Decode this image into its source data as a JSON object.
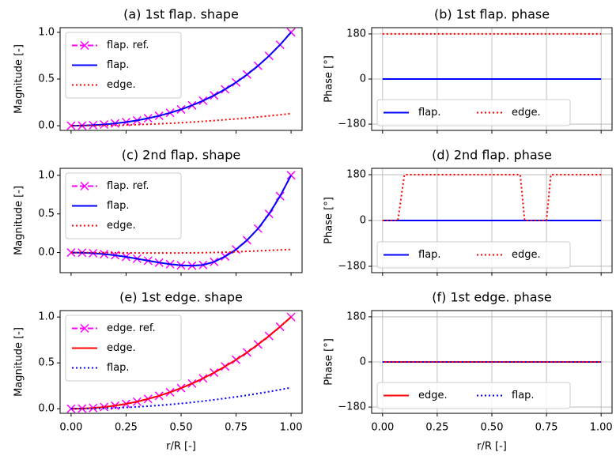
{
  "chart_data": [
    {
      "type": "line",
      "title": "(a) 1st flap. shape",
      "ylabel": "Magnitude [-]",
      "x": [
        0,
        0.05,
        0.1,
        0.15,
        0.2,
        0.25,
        0.3,
        0.35,
        0.4,
        0.45,
        0.5,
        0.55,
        0.6,
        0.65,
        0.7,
        0.75,
        0.8,
        0.85,
        0.9,
        0.95,
        1.0
      ],
      "series": [
        {
          "name": "flap. ref.",
          "color": "#ff00ff",
          "style": "dashed",
          "marker": "x",
          "values": [
            0,
            0.0015,
            0.006,
            0.0137,
            0.0246,
            0.039,
            0.057,
            0.08,
            0.106,
            0.138,
            0.175,
            0.218,
            0.268,
            0.325,
            0.39,
            0.464,
            0.548,
            0.642,
            0.748,
            0.867,
            1.0
          ]
        },
        {
          "name": "flap.",
          "color": "#0000ff",
          "style": "solid",
          "values": [
            0,
            0.0015,
            0.006,
            0.0137,
            0.0246,
            0.039,
            0.057,
            0.08,
            0.106,
            0.138,
            0.175,
            0.218,
            0.268,
            0.325,
            0.39,
            0.464,
            0.548,
            0.642,
            0.748,
            0.867,
            1.0
          ]
        },
        {
          "name": "edge.",
          "color": "#ff0000",
          "style": "dotted",
          "values": [
            0,
            0.0003,
            0.0013,
            0.0029,
            0.0052,
            0.0081,
            0.0117,
            0.0159,
            0.0208,
            0.0263,
            0.0325,
            0.0393,
            0.0468,
            0.0549,
            0.0637,
            0.0731,
            0.0832,
            0.0939,
            0.1053,
            0.1173,
            0.13
          ]
        }
      ],
      "xlim": [
        -0.05,
        1.05
      ],
      "ylim": [
        -0.05,
        1.05
      ],
      "xticks": [
        0,
        0.25,
        0.5,
        0.75,
        1.0
      ],
      "xtick_labels_shown": false,
      "yticks": [
        {
          "value": 0,
          "label": "0.0"
        },
        0.5,
        {
          "value": 1,
          "label": "1.0"
        }
      ],
      "grid": false,
      "legend": "upper left",
      "legend_ncol": 1
    },
    {
      "type": "line",
      "title": "(b) 1st flap. phase",
      "ylabel": "Phase [°]",
      "x": [
        0,
        1.0
      ],
      "series": [
        {
          "name": "flap.",
          "color": "#0000ff",
          "style": "solid",
          "values": [
            0,
            0
          ]
        },
        {
          "name": "edge.",
          "color": "#ff0000",
          "style": "dotted",
          "values": [
            180,
            180
          ]
        }
      ],
      "xlim": [
        -0.05,
        1.05
      ],
      "ylim": [
        -205,
        205
      ],
      "xticks": [
        0,
        0.25,
        0.5,
        0.75,
        1.0
      ],
      "xtick_labels_shown": false,
      "yticks": [
        {
          "value": -180,
          "label": "−180"
        },
        0,
        180
      ],
      "grid": true,
      "legend": "lower left",
      "legend_ncol": 2
    },
    {
      "type": "line",
      "title": "(c) 2nd flap. shape",
      "ylabel": "Magnitude [-]",
      "x": [
        0,
        0.05,
        0.1,
        0.15,
        0.2,
        0.25,
        0.3,
        0.35,
        0.4,
        0.45,
        0.5,
        0.55,
        0.6,
        0.65,
        0.7,
        0.75,
        0.8,
        0.85,
        0.9,
        0.95,
        1.0
      ],
      "series": [
        {
          "name": "flap. ref.",
          "color": "#ff00ff",
          "style": "dashed",
          "marker": "x",
          "values": [
            0,
            -0.002,
            -0.008,
            -0.02,
            -0.035,
            -0.055,
            -0.08,
            -0.105,
            -0.13,
            -0.15,
            -0.165,
            -0.17,
            -0.16,
            -0.12,
            -0.05,
            0.04,
            0.16,
            0.31,
            0.5,
            0.73,
            1.0
          ]
        },
        {
          "name": "flap.",
          "color": "#0000ff",
          "style": "solid",
          "values": [
            0,
            -0.002,
            -0.008,
            -0.02,
            -0.035,
            -0.055,
            -0.08,
            -0.105,
            -0.13,
            -0.15,
            -0.165,
            -0.17,
            -0.16,
            -0.12,
            -0.05,
            0.04,
            0.16,
            0.31,
            0.5,
            0.73,
            1.0
          ]
        },
        {
          "name": "edge.",
          "color": "#ff0000",
          "style": "dotted",
          "values": [
            0,
            0,
            -0.001,
            -0.002,
            -0.003,
            -0.004,
            -0.005,
            -0.006,
            -0.006,
            -0.006,
            -0.005,
            -0.004,
            -0.002,
            0.001,
            0.005,
            0.01,
            0.016,
            0.022,
            0.028,
            0.034,
            0.04
          ]
        }
      ],
      "xlim": [
        -0.05,
        1.05
      ],
      "ylim": [
        -0.26,
        1.09
      ],
      "xticks": [
        0,
        0.25,
        0.5,
        0.75,
        1.0
      ],
      "xtick_labels_shown": false,
      "yticks": [
        {
          "value": 0,
          "label": "0.0"
        },
        0.5,
        {
          "value": 1,
          "label": "1.0"
        }
      ],
      "grid": false,
      "legend": "upper left",
      "legend_ncol": 1
    },
    {
      "type": "line",
      "title": "(d) 2nd flap. phase",
      "ylabel": "Phase [°]",
      "x": [
        0,
        0.05,
        0.07,
        0.1,
        0.6,
        0.63,
        0.65,
        0.75,
        0.77,
        0.8,
        1.0
      ],
      "series": [
        {
          "name": "flap.",
          "color": "#0000ff",
          "style": "solid",
          "values": [
            0,
            0,
            0,
            0,
            0,
            0,
            0,
            0,
            0,
            0,
            0
          ]
        },
        {
          "name": "edge.",
          "color": "#ff0000",
          "style": "dotted",
          "values": [
            0,
            0,
            0,
            180,
            180,
            180,
            0,
            0,
            180,
            180,
            180
          ]
        }
      ],
      "xlim": [
        -0.05,
        1.05
      ],
      "ylim": [
        -205,
        205
      ],
      "xticks": [
        0,
        0.25,
        0.5,
        0.75,
        1.0
      ],
      "xtick_labels_shown": false,
      "yticks": [
        {
          "value": -180,
          "label": "−180"
        },
        0,
        180
      ],
      "grid": true,
      "legend": "lower left",
      "legend_ncol": 2
    },
    {
      "type": "line",
      "title": "(e) 1st edge. shape",
      "ylabel": "Magnitude [-]",
      "xlabel": "r/R [-]",
      "x": [
        0,
        0.05,
        0.1,
        0.15,
        0.2,
        0.25,
        0.3,
        0.35,
        0.4,
        0.45,
        0.5,
        0.55,
        0.6,
        0.65,
        0.7,
        0.75,
        0.8,
        0.85,
        0.9,
        0.95,
        1.0
      ],
      "series": [
        {
          "name": "edge. ref.",
          "color": "#ff00ff",
          "style": "dashed",
          "marker": "x",
          "values": [
            0,
            0.002,
            0.0082,
            0.0187,
            0.0336,
            0.053,
            0.077,
            0.107,
            0.141,
            0.18,
            0.225,
            0.275,
            0.331,
            0.393,
            0.461,
            0.534,
            0.614,
            0.701,
            0.794,
            0.894,
            1.0
          ]
        },
        {
          "name": "edge.",
          "color": "#ff0000",
          "style": "solid",
          "values": [
            0,
            0.002,
            0.0082,
            0.0187,
            0.0336,
            0.053,
            0.077,
            0.107,
            0.141,
            0.18,
            0.225,
            0.275,
            0.331,
            0.393,
            0.461,
            0.534,
            0.614,
            0.701,
            0.794,
            0.894,
            1.0
          ]
        },
        {
          "name": "flap.",
          "color": "#0000ff",
          "style": "dotted",
          "values": [
            0,
            0.0006,
            0.0023,
            0.0052,
            0.0092,
            0.0144,
            0.0207,
            0.0282,
            0.0368,
            0.0466,
            0.0575,
            0.0696,
            0.0828,
            0.0972,
            0.1127,
            0.1294,
            0.1472,
            0.1662,
            0.1863,
            0.2076,
            0.23
          ]
        }
      ],
      "xlim": [
        -0.05,
        1.05
      ],
      "ylim": [
        -0.05,
        1.07
      ],
      "xticks": [
        {
          "value": 0,
          "label": "0.00"
        },
        0.25,
        {
          "value": 0.5,
          "label": "0.50"
        },
        0.75,
        {
          "value": 1,
          "label": "1.00"
        }
      ],
      "xtick_labels_shown": true,
      "yticks": [
        {
          "value": 0,
          "label": "0.0"
        },
        0.5,
        {
          "value": 1,
          "label": "1.0"
        }
      ],
      "grid": false,
      "legend": "upper left",
      "legend_ncol": 1
    },
    {
      "type": "line",
      "title": "(f) 1st edge. phase",
      "ylabel": "Phase [°]",
      "xlabel": "r/R [-]",
      "x": [
        0,
        1.0
      ],
      "series": [
        {
          "name": "edge.",
          "color": "#ff0000",
          "style": "solid",
          "values": [
            0,
            0
          ]
        },
        {
          "name": "flap.",
          "color": "#0000ff",
          "style": "dotted",
          "values": [
            0,
            0
          ]
        }
      ],
      "xlim": [
        -0.05,
        1.05
      ],
      "ylim": [
        -205,
        205
      ],
      "xticks": [
        {
          "value": 0,
          "label": "0.00"
        },
        0.25,
        {
          "value": 0.5,
          "label": "0.50"
        },
        0.75,
        {
          "value": 1,
          "label": "1.00"
        }
      ],
      "xtick_labels_shown": true,
      "yticks": [
        {
          "value": -180,
          "label": "−180"
        },
        0,
        180
      ],
      "grid": true,
      "legend": "lower left",
      "legend_ncol": 2
    }
  ]
}
